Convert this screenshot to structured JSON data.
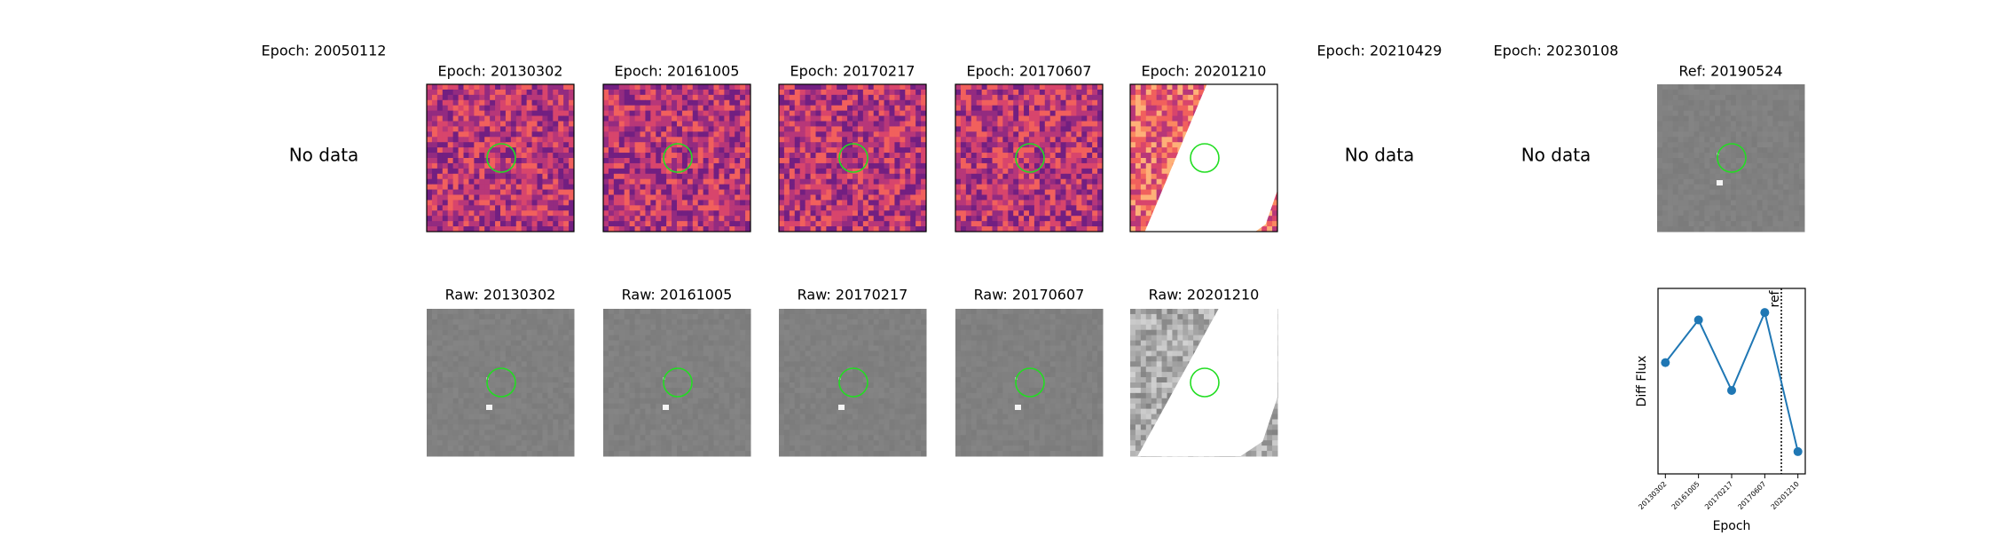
{
  "panels": {
    "diff": [
      {
        "title": "Epoch: 20050112",
        "status": "No data"
      },
      {
        "title": "Epoch: 20130302"
      },
      {
        "title": "Epoch: 20161005"
      },
      {
        "title": "Epoch: 20170217"
      },
      {
        "title": "Epoch: 20170607"
      },
      {
        "title": "Epoch: 20201210"
      },
      {
        "title": "Epoch: 20210429",
        "status": "No data"
      },
      {
        "title": "Epoch: 20230108",
        "status": "No data"
      }
    ],
    "raw": [
      {
        "title": "Raw: 20130302"
      },
      {
        "title": "Raw: 20161005"
      },
      {
        "title": "Raw: 20170217"
      },
      {
        "title": "Raw: 20170607"
      },
      {
        "title": "Raw: 20201210"
      }
    ],
    "ref": {
      "title": "Ref: 20190524"
    }
  },
  "chart_data": {
    "type": "line",
    "xlabel": "Epoch",
    "ylabel": "Diff Flux",
    "categories": [
      "20130302",
      "20161005",
      "20170217",
      "20170607",
      "20201210"
    ],
    "series": [
      {
        "name": "Diff Flux",
        "color": "#1f77b4",
        "values": [
          0.6,
          0.83,
          0.45,
          0.87,
          0.12
        ]
      }
    ],
    "ylim": [
      0,
      1
    ],
    "annotation": "ref"
  }
}
